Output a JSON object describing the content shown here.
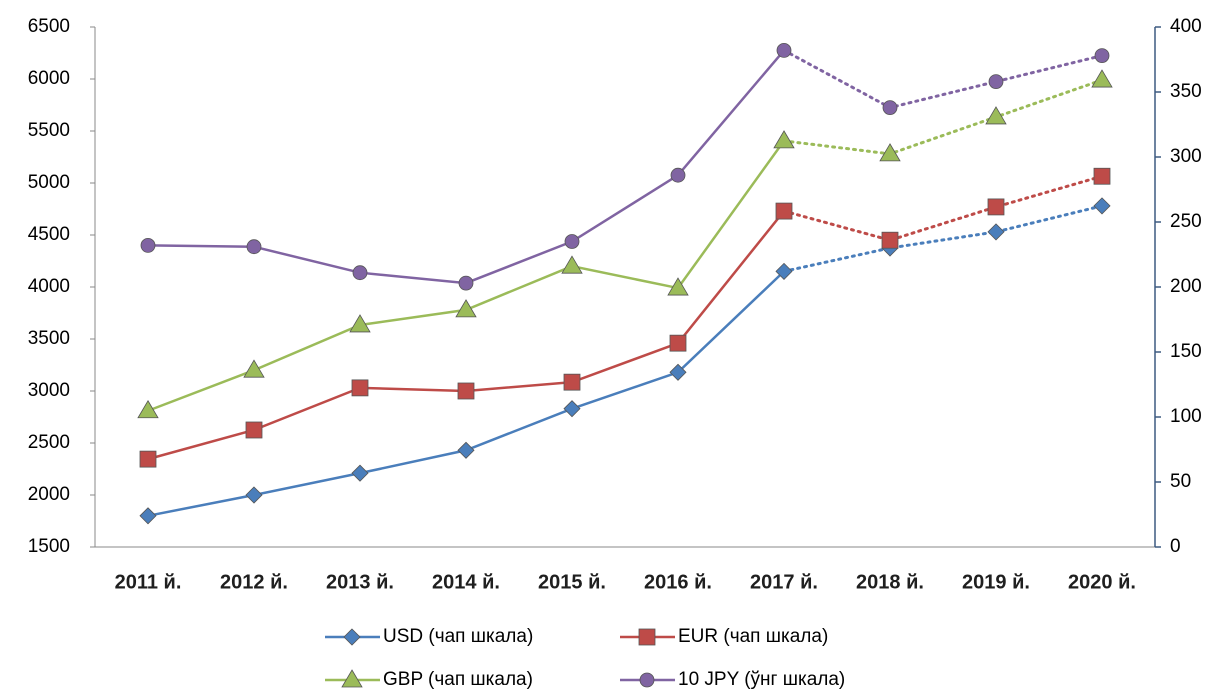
{
  "chart_data": {
    "type": "line",
    "categories": [
      "2011 й.",
      "2012 й.",
      "2013 й.",
      "2014 й.",
      "2015 й.",
      "2016 й.",
      "2017 й.",
      "2018 й.",
      "2019 й.",
      "2020 й."
    ],
    "ylim": [
      1500,
      6500
    ],
    "yticks": [
      1500,
      2000,
      2500,
      3000,
      3500,
      4000,
      4500,
      5000,
      5500,
      6000,
      6500
    ],
    "y2lim": [
      0,
      400
    ],
    "y2ticks": [
      0,
      50,
      100,
      150,
      200,
      250,
      300,
      350,
      400
    ],
    "dotted_from_index": 6,
    "series": [
      {
        "name": "USD (чап шкала)",
        "color": "#4a7ebb",
        "marker": "diamond",
        "values": [
          1800,
          2000,
          2210,
          2430,
          2830,
          3180,
          4150,
          4375,
          4530,
          4780
        ]
      },
      {
        "name": "EUR (чап шкала)",
        "color": "#be4b48",
        "marker": "square",
        "values": [
          2345,
          2625,
          3030,
          3000,
          3085,
          3460,
          4730,
          4450,
          4770,
          5065
        ]
      },
      {
        "name": "GBP (чап шкала)",
        "color": "#9bbb59",
        "marker": "triangle",
        "values": [
          2810,
          3200,
          3635,
          3780,
          4200,
          3990,
          5405,
          5280,
          5635,
          5990
        ]
      },
      {
        "name": "10 JPY (ўнг шкала)",
        "color": "#8064a2",
        "marker": "circle",
        "axis": "y2",
        "values": [
          232,
          231,
          211,
          203,
          235,
          286,
          382,
          338,
          358,
          378
        ]
      }
    ]
  }
}
